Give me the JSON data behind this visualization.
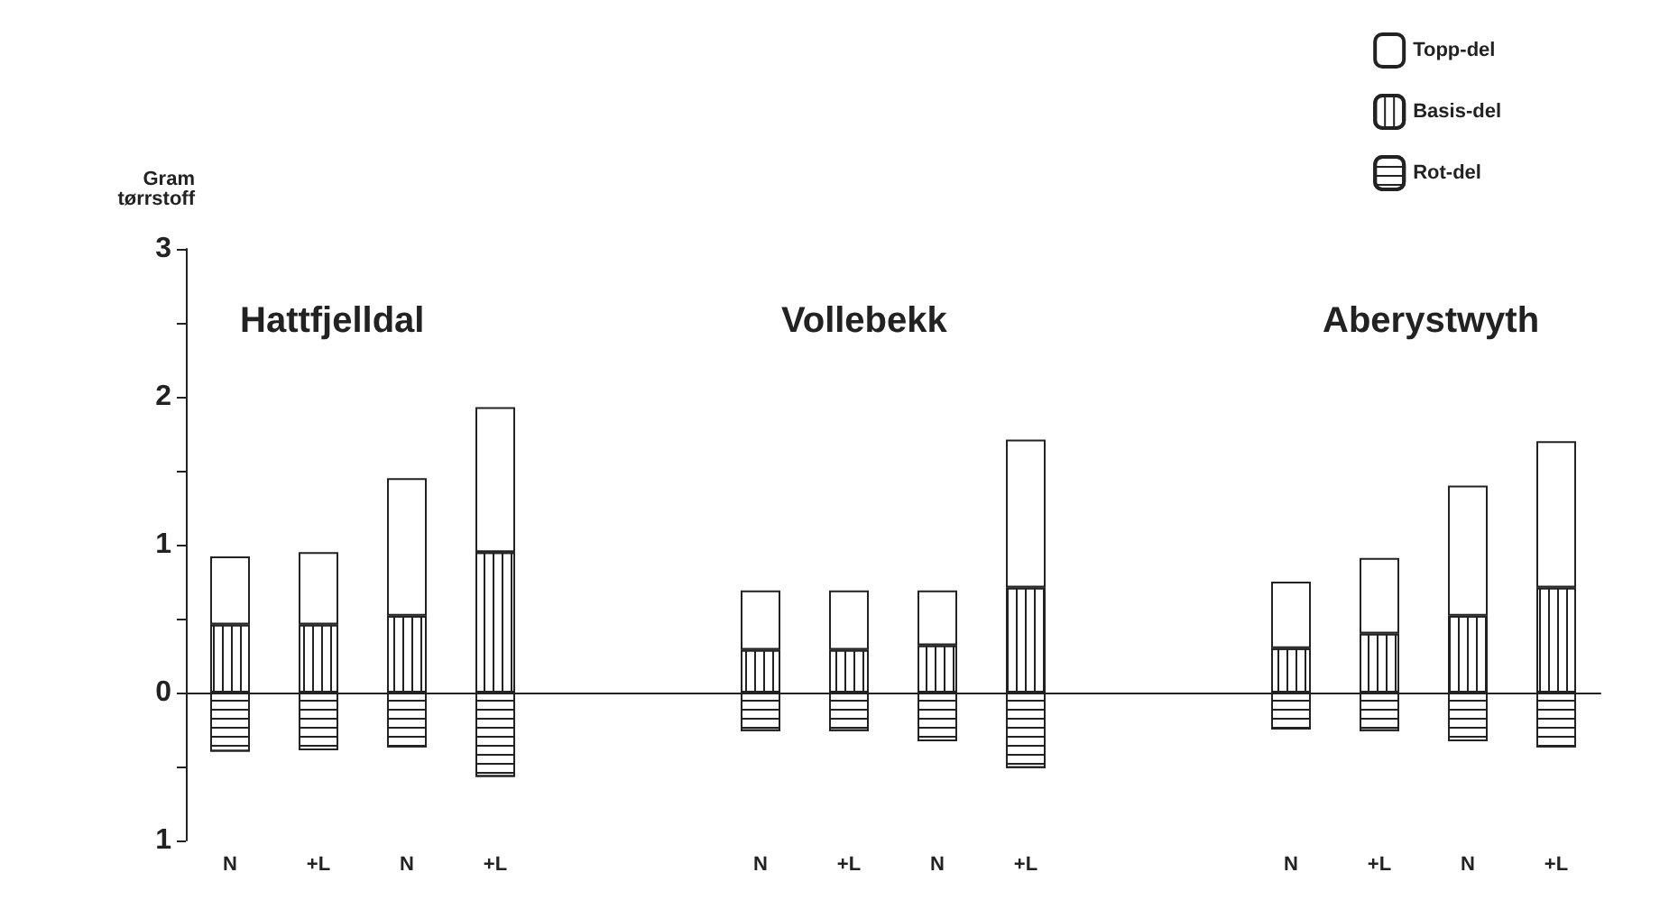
{
  "chart_data": {
    "type": "bar",
    "stacked": true,
    "ylabel": "Gram\ntørrstoff",
    "annotations": [
      "Hattfjelldal",
      "Vollebekk",
      "Aberystwyth"
    ],
    "categories": [
      "N",
      "+L",
      "N",
      "+L",
      null,
      null,
      "N",
      "+L",
      "N",
      "+L",
      null,
      null,
      "N",
      "+L",
      "N",
      "+L"
    ],
    "series": [
      {
        "name": "Basis-del",
        "color": "#ffffff",
        "values": [
          0.46,
          0.46,
          0.52,
          0.95,
          null,
          null,
          0.29,
          0.29,
          0.32,
          0.71,
          null,
          null,
          0.3,
          0.4,
          0.52,
          0.71
        ]
      },
      {
        "name": "Topp-del",
        "color": "#ffffff",
        "values": [
          0.46,
          0.49,
          0.93,
          0.98,
          null,
          null,
          0.4,
          0.4,
          0.37,
          1.0,
          null,
          null,
          0.45,
          0.51,
          0.88,
          0.99
        ]
      },
      {
        "name": "Rot-del",
        "color": "#ffffff",
        "values": [
          -0.4,
          -0.39,
          -0.37,
          -0.57,
          null,
          null,
          -0.26,
          -0.26,
          -0.33,
          -0.51,
          null,
          null,
          -0.25,
          -0.26,
          -0.33,
          -0.37
        ]
      }
    ],
    "legend": "top right",
    "ylim": [
      -1,
      3
    ],
    "yticks": [
      {
        "value": -1,
        "label": "1"
      },
      {
        "value": -0.5,
        "label": null
      },
      0,
      {
        "value": 0.5,
        "label": null
      },
      1,
      {
        "value": 1.5,
        "label": null
      },
      2,
      {
        "value": 2.5,
        "label": null
      },
      3
    ]
  }
}
